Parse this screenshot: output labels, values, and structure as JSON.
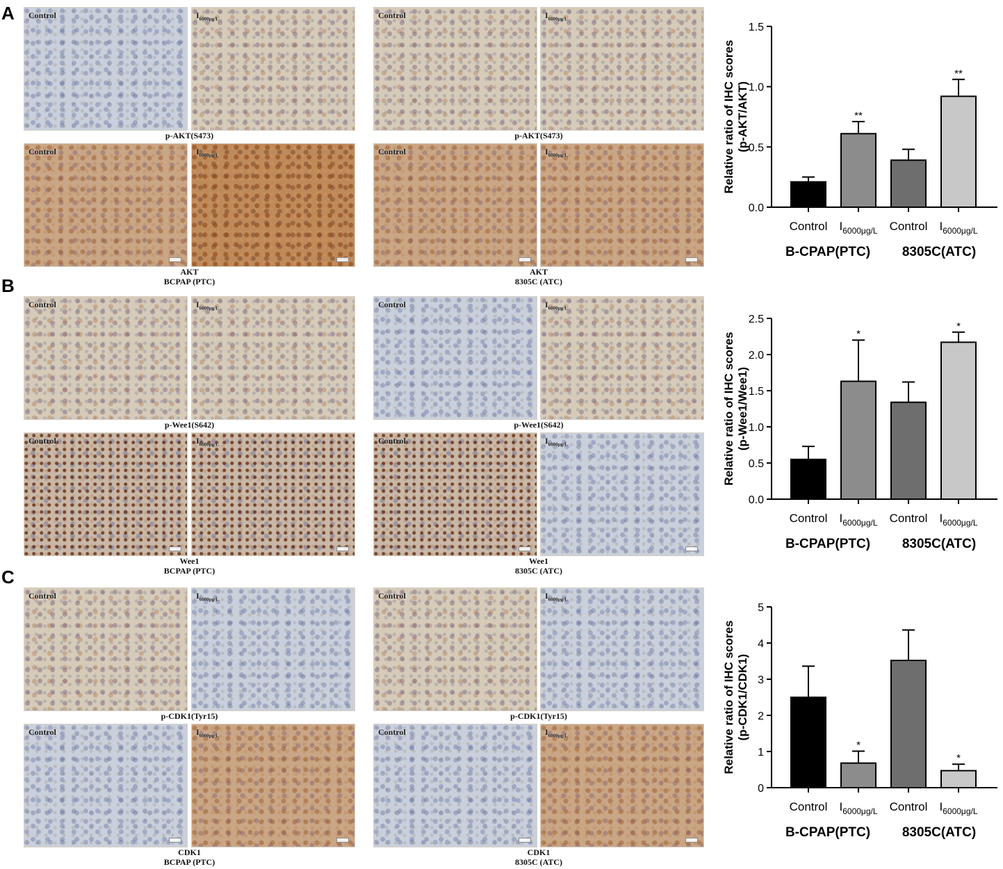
{
  "figure": {
    "panels": [
      {
        "letter": "A",
        "micrographs": {
          "bcpap_row1": [
            {
              "label": "Control",
              "tone": "blue"
            },
            {
              "label": "I",
              "sub": "6000μg/L",
              "tone": "tan"
            }
          ],
          "bcpap_row2": [
            {
              "label": "Control",
              "tone": "brown"
            },
            {
              "label": "I",
              "sub": "6000μg/L",
              "tone": "darkbrown"
            }
          ],
          "atc_row1": [
            {
              "label": "Control",
              "tone": "tan"
            },
            {
              "label": "I",
              "sub": "6000μg/L",
              "tone": "tan"
            }
          ],
          "atc_row2": [
            {
              "label": "Control",
              "tone": "brown"
            },
            {
              "label": "I",
              "sub": "6000μg/L",
              "tone": "brown"
            }
          ]
        },
        "captions": {
          "bcpap_row1": "p-AKT(S473)",
          "bcpap_row2_line1": "AKT",
          "bcpap_row2_line2": "BCPAP (PTC)",
          "atc_row1": "p-AKT(S473)",
          "atc_row2_line1": "AKT",
          "atc_row2_line2": "8305C (ATC)"
        }
      },
      {
        "letter": "B",
        "micrographs": {
          "bcpap_row1": [
            {
              "label": "Control",
              "tone": "tan"
            },
            {
              "label": "I",
              "sub": "6000μg/L",
              "tone": "tan"
            }
          ],
          "bcpap_row2": [
            {
              "label": "Control",
              "tone": "speckle"
            },
            {
              "label": "I",
              "sub": "6000μg/L",
              "tone": "speckle"
            }
          ],
          "atc_row1": [
            {
              "label": "Control",
              "tone": "blue"
            },
            {
              "label": "I",
              "sub": "6000μg/L",
              "tone": "tan"
            }
          ],
          "atc_row2": [
            {
              "label": "Control",
              "tone": "speckle"
            },
            {
              "label": "I",
              "sub": "6000μg/L",
              "tone": "blue"
            }
          ]
        },
        "captions": {
          "bcpap_row1": "p-Wee1(S642)",
          "bcpap_row2_line1": "Wee1",
          "bcpap_row2_line2": "BCPAP (PTC)",
          "atc_row1": "p-Wee1(S642)",
          "atc_row2_line1": "Wee1",
          "atc_row2_line2": "8305C (ATC)"
        }
      },
      {
        "letter": "C",
        "micrographs": {
          "bcpap_row1": [
            {
              "label": "Control",
              "tone": "tan"
            },
            {
              "label": "I",
              "sub": "6000μg/L",
              "tone": "blue"
            }
          ],
          "bcpap_row2": [
            {
              "label": "Control",
              "tone": "blue"
            },
            {
              "label": "I",
              "sub": "6000μg/L",
              "tone": "brown"
            }
          ],
          "atc_row1": [
            {
              "label": "Control",
              "tone": "tan"
            },
            {
              "label": "I",
              "sub": "6000μg/L",
              "tone": "blue"
            }
          ],
          "atc_row2": [
            {
              "label": "Control",
              "tone": "blue"
            },
            {
              "label": "I",
              "sub": "6000μg/L",
              "tone": "brown"
            }
          ]
        },
        "captions": {
          "bcpap_row1": "p-CDK1(Tyr15)",
          "bcpap_row2_line1": "CDK1",
          "bcpap_row2_line2": "BCPAP (PTC)",
          "atc_row1": "p-CDK1(Tyr15)",
          "atc_row2_line1": "CDK1",
          "atc_row2_line2": "8305C (ATC)"
        }
      }
    ]
  },
  "chart_data": [
    {
      "type": "bar",
      "ylabel_line1": "Relative ratio of IHC scores",
      "ylabel_line2": "(p-AKT/AKT)",
      "ylim": [
        0,
        1.5
      ],
      "yticks": [
        "0.0",
        "0.5",
        "1.0",
        "1.5"
      ],
      "categories": [
        {
          "label": "Control"
        },
        {
          "label": "I",
          "sub": "6000μg/L"
        },
        {
          "label": "Control"
        },
        {
          "label": "I",
          "sub": "6000μg/L"
        }
      ],
      "values": [
        0.21,
        0.61,
        0.39,
        0.92
      ],
      "errors": [
        0.04,
        0.1,
        0.09,
        0.14
      ],
      "significance": [
        "",
        "**",
        "",
        "**"
      ],
      "bar_colors": [
        "#000000",
        "#8c8c8c",
        "#6e6e6e",
        "#c8c8c8"
      ],
      "groups": [
        "B-CPAP(PTC)",
        "8305C(ATC)"
      ]
    },
    {
      "type": "bar",
      "ylabel_line1": "Relative ratio of IHC scores",
      "ylabel_line2": "(p-Wee1/Wee1)",
      "ylim": [
        0,
        2.5
      ],
      "yticks": [
        "0.0",
        "0.5",
        "1.0",
        "1.5",
        "2.0",
        "2.5"
      ],
      "categories": [
        {
          "label": "Control"
        },
        {
          "label": "I",
          "sub": "6000μg/L"
        },
        {
          "label": "Control"
        },
        {
          "label": "I",
          "sub": "6000μg/L"
        }
      ],
      "values": [
        0.55,
        1.63,
        1.34,
        2.17
      ],
      "errors": [
        0.18,
        0.57,
        0.28,
        0.14
      ],
      "significance": [
        "",
        "*",
        "",
        "*"
      ],
      "bar_colors": [
        "#000000",
        "#8c8c8c",
        "#6e6e6e",
        "#c8c8c8"
      ],
      "groups": [
        "B-CPAP(PTC)",
        "8305C(ATC)"
      ]
    },
    {
      "type": "bar",
      "ylabel_line1": "Relative ratio of IHC scores",
      "ylabel_line2": "(p-CDK1/CDK1)",
      "ylim": [
        0,
        5
      ],
      "yticks": [
        "0",
        "1",
        "2",
        "3",
        "4",
        "5"
      ],
      "categories": [
        {
          "label": "Control"
        },
        {
          "label": "I",
          "sub": "6000μg/L"
        },
        {
          "label": "Control"
        },
        {
          "label": "I",
          "sub": "6000μg/L"
        }
      ],
      "values": [
        2.5,
        0.68,
        3.52,
        0.47
      ],
      "errors": [
        0.86,
        0.33,
        0.84,
        0.18
      ],
      "significance": [
        "",
        "*",
        "",
        "*"
      ],
      "bar_colors": [
        "#000000",
        "#8c8c8c",
        "#6e6e6e",
        "#c8c8c8"
      ],
      "groups": [
        "B-CPAP(PTC)",
        "8305C(ATC)"
      ]
    }
  ]
}
